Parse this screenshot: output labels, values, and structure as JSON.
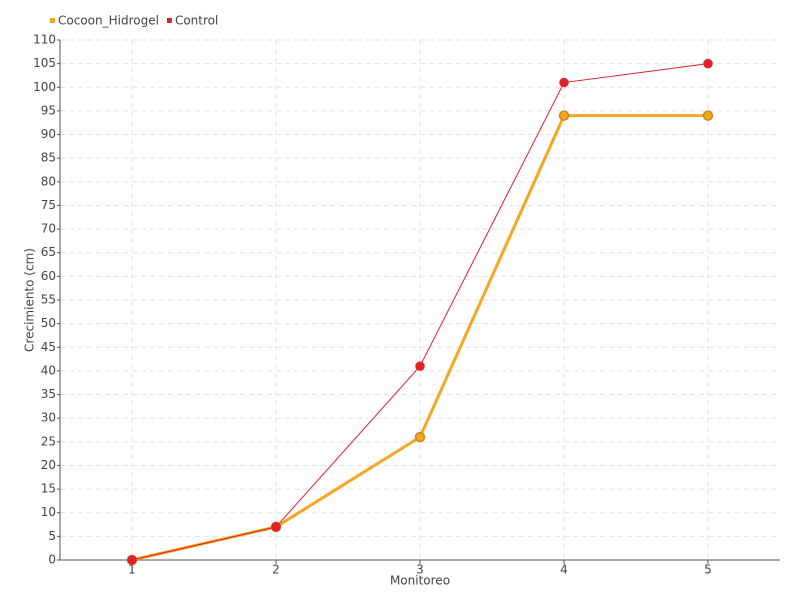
{
  "chart_data": {
    "type": "line",
    "x_label": "Monitoreo",
    "y_label": "Crecimiento (cm)",
    "categories": [
      "1",
      "2",
      "3",
      "4",
      "5"
    ],
    "series": [
      {
        "name": "Cocoon_Hidrogel",
        "color": "#f5a623",
        "values": [
          0,
          7,
          26,
          94,
          94
        ]
      },
      {
        "name": "Control",
        "color": "#e0202a",
        "values": [
          0,
          7,
          41,
          101,
          105
        ]
      }
    ],
    "ylim": [
      0,
      110
    ],
    "yticks": [
      0,
      5,
      10,
      15,
      20,
      25,
      30,
      35,
      40,
      45,
      50,
      55,
      60,
      65,
      70,
      75,
      80,
      85,
      90,
      95,
      100,
      105,
      110
    ],
    "grid": true
  }
}
